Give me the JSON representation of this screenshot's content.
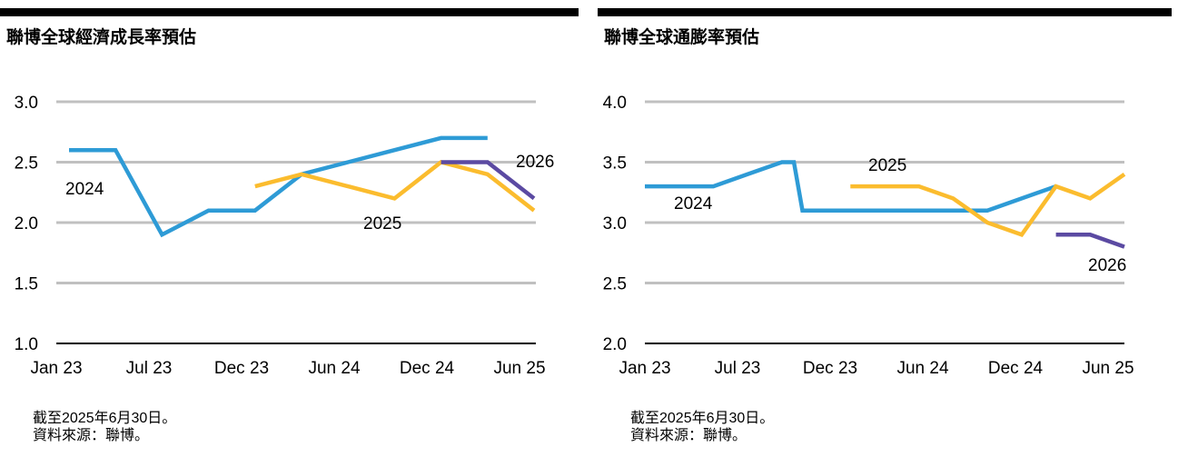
{
  "colors": {
    "2024": "#2e9bd6",
    "2025": "#fbbc2e",
    "2026": "#5b4aa2",
    "grid": "#c0c0c0",
    "axis": "#000000"
  },
  "panels": [
    {
      "title": "聯博全球經濟成長率預估",
      "notes": [
        "截至2025年6月30日。",
        "資料來源：聯博。"
      ],
      "chart_data": {
        "type": "line",
        "title": "聯博全球經濟成長率預估",
        "xlabel": "",
        "ylabel": "",
        "ylim": [
          1.0,
          3.0
        ],
        "yticks": [
          "3.0",
          "2.5",
          "2.0",
          "1.5",
          "1.0"
        ],
        "ytick_values": [
          3.0,
          2.5,
          2.0,
          1.5,
          1.0
        ],
        "categories": [
          "Jan 23",
          "Jul 23",
          "Dec 23",
          "Jun 24",
          "Dec 24",
          "Jun 25"
        ],
        "grid": true,
        "series": [
          {
            "name": "2024",
            "color": "#2e9bd6",
            "points": [
              [
                0,
                2.6
              ],
              [
                1,
                2.6
              ],
              [
                2,
                1.9
              ],
              [
                3,
                2.1
              ],
              [
                4,
                2.1
              ],
              [
                5,
                2.4
              ],
              [
                6,
                2.5
              ],
              [
                7,
                2.6
              ],
              [
                8,
                2.7
              ],
              [
                9,
                2.7
              ]
            ]
          },
          {
            "name": "2025",
            "color": "#fbbc2e",
            "points": [
              [
                4,
                2.3
              ],
              [
                5,
                2.4
              ],
              [
                6,
                2.3
              ],
              [
                7,
                2.2
              ],
              [
                8,
                2.5
              ],
              [
                9,
                2.4
              ],
              [
                10,
                2.1
              ]
            ]
          },
          {
            "name": "2026",
            "color": "#5b4aa2",
            "points": [
              [
                8,
                2.5
              ],
              [
                9,
                2.5
              ],
              [
                10,
                2.2
              ]
            ]
          }
        ]
      }
    },
    {
      "title": "聯博全球通膨率預估",
      "notes": [
        "截至2025年6月30日。",
        "資料來源：聯博。"
      ],
      "chart_data": {
        "type": "line",
        "title": "聯博全球通膨率預估",
        "xlabel": "",
        "ylabel": "",
        "ylim": [
          2.0,
          4.0
        ],
        "yticks": [
          "4.0",
          "3.5",
          "3.0",
          "2.5",
          "2.0"
        ],
        "ytick_values": [
          4.0,
          3.5,
          3.0,
          2.5,
          2.0
        ],
        "categories": [
          "Jan 23",
          "Jul 23",
          "Dec 23",
          "Jun 24",
          "Dec 24",
          "Jun 25"
        ],
        "grid": true,
        "series": [
          {
            "name": "2024",
            "color": "#2e9bd6",
            "points": [
              [
                0,
                3.3
              ],
              [
                1,
                3.3
              ],
              [
                2,
                3.3
              ],
              [
                3,
                3.4
              ],
              [
                4,
                3.5
              ],
              [
                4.35,
                3.5
              ],
              [
                4.6,
                3.1
              ],
              [
                5,
                3.1
              ],
              [
                6,
                3.1
              ],
              [
                7,
                3.1
              ],
              [
                8,
                3.1
              ],
              [
                9,
                3.1
              ],
              [
                10,
                3.1
              ],
              [
                11,
                3.2
              ],
              [
                12,
                3.3
              ]
            ]
          },
          {
            "name": "2025",
            "color": "#fbbc2e",
            "points": [
              [
                6,
                3.3
              ],
              [
                7,
                3.3
              ],
              [
                8,
                3.3
              ],
              [
                9,
                3.2
              ],
              [
                10,
                3.0
              ],
              [
                11,
                2.9
              ],
              [
                12,
                3.3
              ],
              [
                13,
                3.2
              ],
              [
                14,
                3.4
              ]
            ]
          },
          {
            "name": "2026",
            "color": "#5b4aa2",
            "points": [
              [
                12,
                2.9
              ],
              [
                13,
                2.9
              ],
              [
                14,
                2.8
              ]
            ]
          }
        ]
      }
    }
  ]
}
